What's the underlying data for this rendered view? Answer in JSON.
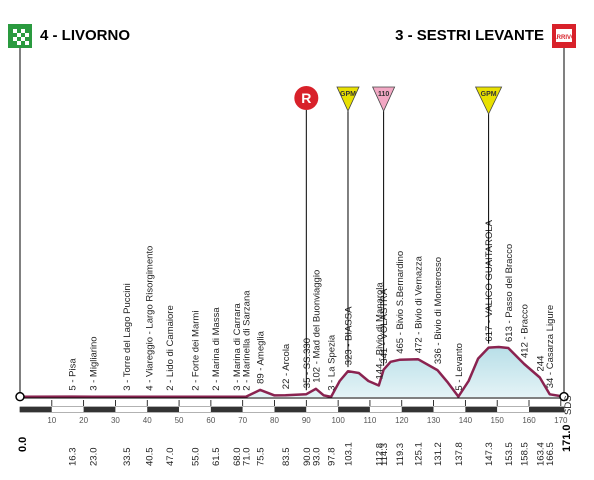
{
  "header": {
    "start_label": "4 - LIVORNO",
    "finish_label": "3 - SESTRI LEVANTE"
  },
  "chart_data": {
    "type": "area",
    "title": "",
    "xlabel": "",
    "ylabel": "",
    "xlim": [
      0,
      171
    ],
    "x_ticks": [
      10,
      20,
      30,
      40,
      50,
      60,
      70,
      80,
      90,
      100,
      110,
      120,
      130,
      140,
      150,
      160,
      170
    ],
    "start_km": "0.0",
    "finish_km": "171.0",
    "finish_altitude": "SDS",
    "profile_points": [
      {
        "x": 0,
        "y": 4
      },
      {
        "x": 16.3,
        "y": 5
      },
      {
        "x": 23.0,
        "y": 3
      },
      {
        "x": 33.5,
        "y": 3
      },
      {
        "x": 40.5,
        "y": 4
      },
      {
        "x": 47.0,
        "y": 2
      },
      {
        "x": 55.0,
        "y": 2
      },
      {
        "x": 61.5,
        "y": 2
      },
      {
        "x": 68.0,
        "y": 3
      },
      {
        "x": 71.0,
        "y": 2
      },
      {
        "x": 75.5,
        "y": 89
      },
      {
        "x": 80.0,
        "y": 20
      },
      {
        "x": 83.5,
        "y": 22
      },
      {
        "x": 90.0,
        "y": 35
      },
      {
        "x": 93.0,
        "y": 102
      },
      {
        "x": 95.5,
        "y": 20
      },
      {
        "x": 97.8,
        "y": 3
      },
      {
        "x": 100.5,
        "y": 200
      },
      {
        "x": 103.1,
        "y": 323
      },
      {
        "x": 106.5,
        "y": 300
      },
      {
        "x": 109.5,
        "y": 200
      },
      {
        "x": 112.8,
        "y": 144
      },
      {
        "x": 114.3,
        "y": 341
      },
      {
        "x": 116.5,
        "y": 440
      },
      {
        "x": 119.3,
        "y": 465
      },
      {
        "x": 125.1,
        "y": 472
      },
      {
        "x": 131.2,
        "y": 336
      },
      {
        "x": 134.5,
        "y": 180
      },
      {
        "x": 137.8,
        "y": 5
      },
      {
        "x": 141.0,
        "y": 200
      },
      {
        "x": 144.0,
        "y": 480
      },
      {
        "x": 147.3,
        "y": 617
      },
      {
        "x": 150.5,
        "y": 625
      },
      {
        "x": 153.5,
        "y": 613
      },
      {
        "x": 158.5,
        "y": 412
      },
      {
        "x": 163.4,
        "y": 244
      },
      {
        "x": 166.5,
        "y": 34
      },
      {
        "x": 171.0,
        "y": 5
      }
    ],
    "points_of_interest": [
      {
        "km": "16.3",
        "label": "5 - Pisa"
      },
      {
        "km": "23.0",
        "label": "3 - Migliarino"
      },
      {
        "km": "33.5",
        "label": "3 - Torre del Lago Puccini"
      },
      {
        "km": "40.5",
        "label": "4 - Viareggio - Largo Risorgimento"
      },
      {
        "km": "47.0",
        "label": "2 - Lido di Camaiore"
      },
      {
        "km": "55.0",
        "label": "2 - Forte dei Marmi"
      },
      {
        "km": "61.5",
        "label": "2 - Marina di Massa"
      },
      {
        "km": "68.0",
        "label": "3 - Marina di Carrara"
      },
      {
        "km": "71.0",
        "label": "2 - Marinella di Sarzana"
      },
      {
        "km": "75.5",
        "label": "89 - Ameglia"
      },
      {
        "km": "83.5",
        "label": "22 - Arcola"
      },
      {
        "km": "90.0",
        "label": "35 - SS.330"
      },
      {
        "km": "93.0",
        "label": "102 - Mad del Buonviaggio"
      },
      {
        "km": "97.8",
        "label": "3 - La Spezia"
      },
      {
        "km": "103.1",
        "label": "323 - BIASSA"
      },
      {
        "km": "112.8",
        "label": "144 - Bivio di Manarola"
      },
      {
        "km": "114.3",
        "label": "341 - VOLASTRA"
      },
      {
        "km": "119.3",
        "label": "465 - Bivio S.Bernardino"
      },
      {
        "km": "125.1",
        "label": "472 - Bivio di Vernazza"
      },
      {
        "km": "131.2",
        "label": "336 - Bivio di Monterosso"
      },
      {
        "km": "137.8",
        "label": "5 - Levanto"
      },
      {
        "km": "147.3",
        "label": "617 - VALICO GUAITAROLA"
      },
      {
        "km": "153.5",
        "label": "613 - Passo del Bracco"
      },
      {
        "km": "158.5",
        "label": "412 - Bracco"
      },
      {
        "km": "163.4",
        "label": "244"
      },
      {
        "km": "166.5",
        "label": "34 - Casarza Ligure"
      }
    ],
    "climb_markers": [
      {
        "at_km": 90.0,
        "kind": "refuel",
        "text": "R"
      },
      {
        "at_km": 103.1,
        "kind": "gpm",
        "text": "GPM"
      },
      {
        "at_km": 114.3,
        "kind": "sprint",
        "text": "110"
      },
      {
        "at_km": 147.3,
        "kind": "gpm",
        "text": "GPM"
      }
    ],
    "bar_segments": [
      {
        "from_km": 0,
        "to_km": 10,
        "color": "#333333"
      },
      {
        "from_km": 10,
        "to_km": 20,
        "color": "#ffffff"
      },
      {
        "from_km": 20,
        "to_km": 30,
        "color": "#333333"
      },
      {
        "from_km": 30,
        "to_km": 40,
        "color": "#ffffff"
      },
      {
        "from_km": 40,
        "to_km": 50,
        "color": "#333333"
      },
      {
        "from_km": 50,
        "to_km": 60,
        "color": "#ffffff"
      },
      {
        "from_km": 60,
        "to_km": 70,
        "color": "#333333"
      },
      {
        "from_km": 70,
        "to_km": 80,
        "color": "#ffffff"
      },
      {
        "from_km": 80,
        "to_km": 90,
        "color": "#333333"
      },
      {
        "from_km": 90,
        "to_km": 100,
        "color": "#ffffff"
      },
      {
        "from_km": 100,
        "to_km": 110,
        "color": "#333333"
      },
      {
        "from_km": 110,
        "to_km": 120,
        "color": "#ffffff"
      },
      {
        "from_km": 120,
        "to_km": 130,
        "color": "#333333"
      },
      {
        "from_km": 130,
        "to_km": 140,
        "color": "#ffffff"
      },
      {
        "from_km": 140,
        "to_km": 150,
        "color": "#333333"
      },
      {
        "from_km": 150,
        "to_km": 160,
        "color": "#ffffff"
      },
      {
        "from_km": 160,
        "to_km": 171,
        "color": "#333333"
      }
    ],
    "colors": {
      "profile_fill_top": "#b8dfe8",
      "profile_fill_bottom": "#e4f3f6",
      "profile_line": "#8a2350",
      "axis": "#000000",
      "start_flag": "#2a9a3f",
      "finish_flag": "#d8212a",
      "refuel": "#d8212a",
      "gpm": "#e8e000",
      "sprint": "#f2a8c4"
    }
  }
}
